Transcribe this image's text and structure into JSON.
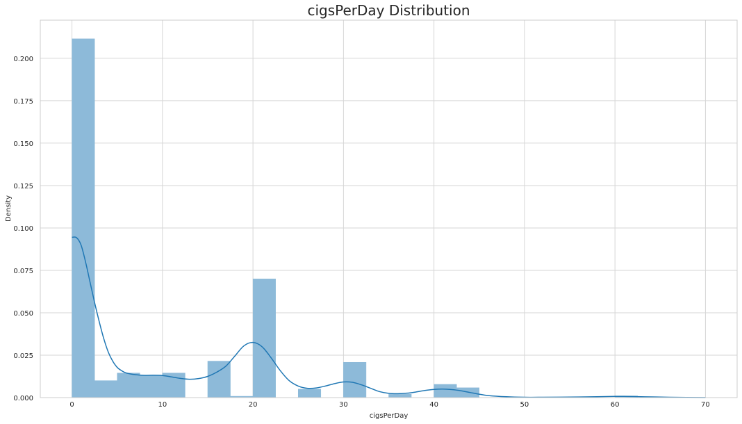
{
  "chart_data": {
    "type": "bar",
    "title": "cigsPerDay Distribution",
    "xlabel": "cigsPerDay",
    "ylabel": "Density",
    "xlim": [
      -3.5,
      73.5
    ],
    "ylim": [
      0,
      0.2225
    ],
    "xticks": [
      0,
      10,
      20,
      30,
      40,
      50,
      60,
      70
    ],
    "yticks": [
      0.0,
      0.025,
      0.05,
      0.075,
      0.1,
      0.125,
      0.15,
      0.175,
      0.2
    ],
    "ytick_labels": [
      "0.000",
      "0.025",
      "0.050",
      "0.075",
      "0.100",
      "0.125",
      "0.150",
      "0.175",
      "0.200"
    ],
    "grid": true,
    "histogram": {
      "bin_width": 2.5,
      "bins": [
        {
          "x0": 0.0,
          "density": 0.2115
        },
        {
          "x0": 2.5,
          "density": 0.01
        },
        {
          "x0": 5.0,
          "density": 0.0145
        },
        {
          "x0": 7.5,
          "density": 0.013
        },
        {
          "x0": 10.0,
          "density": 0.0145
        },
        {
          "x0": 12.5,
          "density": 0.0
        },
        {
          "x0": 15.0,
          "density": 0.0215
        },
        {
          "x0": 17.5,
          "density": 0.0008
        },
        {
          "x0": 20.0,
          "density": 0.07
        },
        {
          "x0": 22.5,
          "density": 0.0
        },
        {
          "x0": 25.0,
          "density": 0.005
        },
        {
          "x0": 27.5,
          "density": 0.0
        },
        {
          "x0": 30.0,
          "density": 0.0208
        },
        {
          "x0": 32.5,
          "density": 0.0
        },
        {
          "x0": 35.0,
          "density": 0.002
        },
        {
          "x0": 37.5,
          "density": 0.0
        },
        {
          "x0": 40.0,
          "density": 0.0078
        },
        {
          "x0": 42.5,
          "density": 0.0058
        },
        {
          "x0": 45.0,
          "density": 0.0
        },
        {
          "x0": 47.5,
          "density": 0.0
        },
        {
          "x0": 50.0,
          "density": 0.0
        },
        {
          "x0": 52.5,
          "density": 0.0
        },
        {
          "x0": 55.0,
          "density": 0.0
        },
        {
          "x0": 57.5,
          "density": 0.0
        },
        {
          "x0": 60.0,
          "density": 0.001
        },
        {
          "x0": 62.5,
          "density": 0.0
        },
        {
          "x0": 65.0,
          "density": 0.0
        },
        {
          "x0": 67.5,
          "density": 0.0
        }
      ]
    },
    "kde": {
      "x": [
        0,
        0.5,
        1,
        1.5,
        2,
        2.5,
        3,
        3.5,
        4,
        4.5,
        5,
        5.5,
        6,
        7,
        8,
        9,
        10,
        11,
        12,
        13,
        14,
        15,
        16,
        17,
        18,
        19,
        20,
        21,
        22,
        23,
        24,
        25,
        26,
        27,
        28,
        29,
        30,
        31,
        32,
        33,
        34,
        35,
        36,
        37,
        38,
        39,
        40,
        41,
        42,
        43,
        44,
        45,
        46,
        48,
        50,
        52,
        55,
        58,
        60,
        61,
        62,
        64,
        66,
        70
      ],
      "y": [
        0.0945,
        0.0943,
        0.09,
        0.08,
        0.068,
        0.056,
        0.045,
        0.035,
        0.027,
        0.0215,
        0.0178,
        0.0158,
        0.0145,
        0.0135,
        0.0131,
        0.0132,
        0.013,
        0.0122,
        0.0113,
        0.0108,
        0.0112,
        0.0125,
        0.015,
        0.0185,
        0.0245,
        0.0305,
        0.0325,
        0.03,
        0.0235,
        0.016,
        0.01,
        0.0068,
        0.0055,
        0.0057,
        0.0068,
        0.0082,
        0.0092,
        0.009,
        0.0075,
        0.0055,
        0.0035,
        0.0025,
        0.0023,
        0.0026,
        0.0033,
        0.0042,
        0.0048,
        0.005,
        0.0047,
        0.004,
        0.003,
        0.002,
        0.0012,
        0.0005,
        0.0002,
        0.0002,
        0.0003,
        0.0005,
        0.0007,
        0.0007,
        0.0006,
        0.0004,
        0.0002,
        0.0
      ]
    }
  }
}
